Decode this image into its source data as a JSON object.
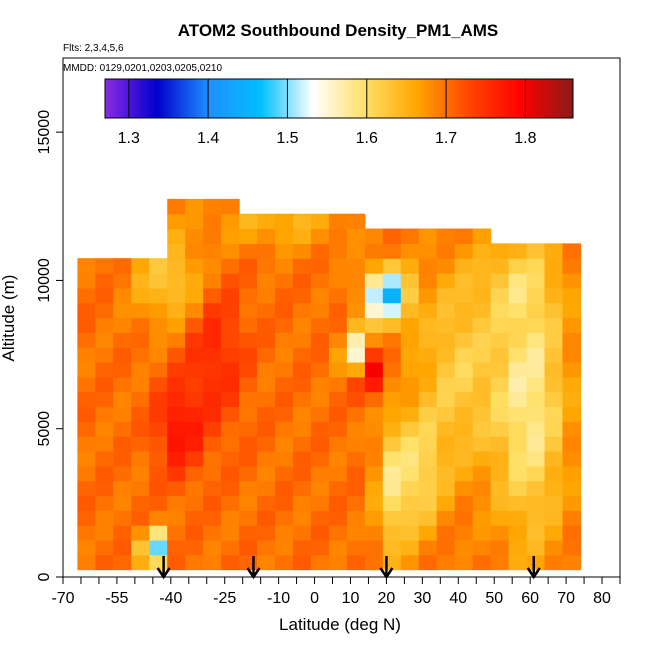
{
  "chart_data": {
    "type": "heatmap",
    "title": "ATOM2 Southbound Density_PM1_AMS",
    "flights_note": "Flts: 2,3,4,5,6",
    "dates_note": "MMDD: 0129,0201,0203,0205,0210",
    "xlabel": "Latitude (deg N)",
    "ylabel": "Altitude (m)",
    "xlim": [
      -70,
      85
    ],
    "ylim": [
      0,
      17500
    ],
    "xticks": [
      -70,
      -55,
      -40,
      -25,
      -10,
      0,
      10,
      20,
      30,
      40,
      50,
      60,
      70,
      80
    ],
    "yticks": [
      0,
      5000,
      10000,
      15000
    ],
    "colorbar": {
      "range": [
        1.27,
        1.86
      ],
      "ticks": [
        1.3,
        1.4,
        1.5,
        1.6,
        1.7,
        1.8
      ],
      "colors": [
        "#8a2be2",
        "#0000cd",
        "#1e90ff",
        "#00bfff",
        "#ffffff",
        "#ffe066",
        "#ffa500",
        "#ff4500",
        "#ff0000",
        "#8b1a1a"
      ]
    },
    "arrows_latitude": [
      -42,
      -17,
      20,
      61
    ],
    "density_grid": {
      "lat_start": -66,
      "lat_step": 5,
      "alt_start": 250,
      "alt_step": 500,
      "base_value": 1.7,
      "features": [
        {
          "lat": -28,
          "alt": 7500,
          "dlat": 8,
          "dalt": 2500,
          "value": 1.76
        },
        {
          "lat": -38,
          "alt": 5000,
          "dlat": 6,
          "dalt": 1500,
          "value": 1.78
        },
        {
          "lat": 15,
          "alt": 7000,
          "dlat": 5,
          "dalt": 800,
          "value": 1.84
        },
        {
          "lat": 60,
          "alt": 6000,
          "dlat": 10,
          "dalt": 5000,
          "value": 1.58
        },
        {
          "lat": 40,
          "alt": 7000,
          "dlat": 12,
          "dalt": 3500,
          "value": 1.62
        },
        {
          "lat": 20,
          "alt": 9500,
          "dlat": 6,
          "dalt": 900,
          "value": 1.45
        },
        {
          "lat": 12,
          "alt": 7500,
          "dlat": 4,
          "dalt": 800,
          "value": 1.5
        },
        {
          "lat": 22,
          "alt": 3000,
          "dlat": 5,
          "dalt": 2500,
          "value": 1.6
        },
        {
          "lat": 30,
          "alt": 3500,
          "dlat": 6,
          "dalt": 2000,
          "value": 1.62
        },
        {
          "lat": -45,
          "alt": 1000,
          "dlat": 3,
          "dalt": 600,
          "value": 1.45
        },
        {
          "lat": -40,
          "alt": 10000,
          "dlat": 10,
          "dalt": 1500,
          "value": 1.62
        },
        {
          "lat": -10,
          "alt": 12000,
          "dlat": 20,
          "dalt": 900,
          "value": 1.65
        },
        {
          "lat": 55,
          "alt": 10000,
          "dlat": 12,
          "dalt": 1200,
          "value": 1.66
        }
      ]
    }
  }
}
